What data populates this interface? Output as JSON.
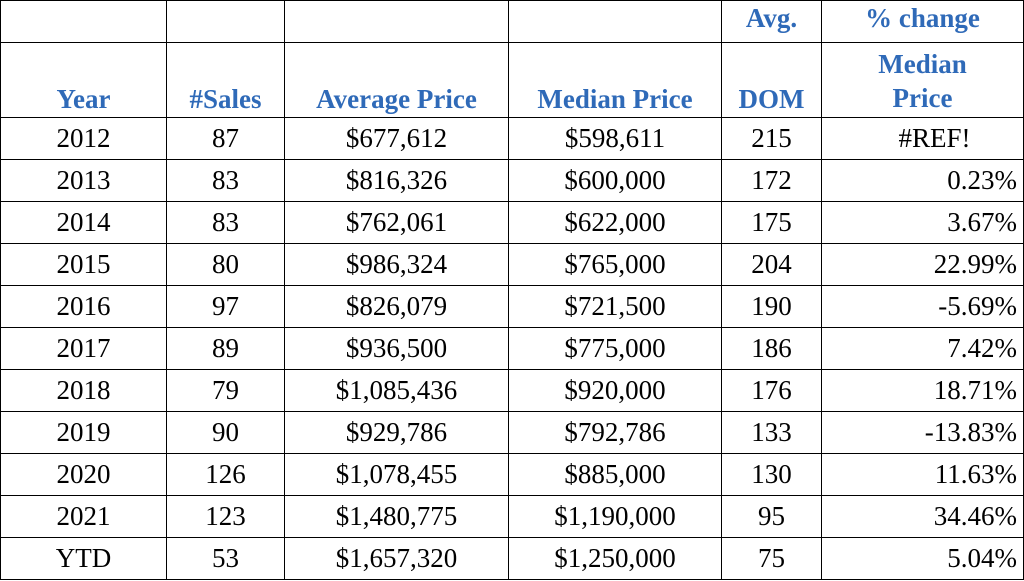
{
  "headers": {
    "year": "Year",
    "sales": "#Sales",
    "average_price": "Average Price",
    "median_price": "Median Price",
    "dom_top": "Avg.",
    "dom_bottom": "DOM",
    "pct_line1": "% change",
    "pct_line2": "Median",
    "pct_line3": "Price"
  },
  "colors": {
    "header_text": "#2f6ab8",
    "body_text": "#000000",
    "border": "#000000"
  },
  "rows": [
    {
      "year": "2012",
      "sales": "87",
      "avg": "$677,612",
      "median": "$598,611",
      "dom": "215",
      "pct": "#REF!"
    },
    {
      "year": "2013",
      "sales": "83",
      "avg": "$816,326",
      "median": "$600,000",
      "dom": "172",
      "pct": "0.23%"
    },
    {
      "year": "2014",
      "sales": "83",
      "avg": "$762,061",
      "median": "$622,000",
      "dom": "175",
      "pct": "3.67%"
    },
    {
      "year": "2015",
      "sales": "80",
      "avg": "$986,324",
      "median": "$765,000",
      "dom": "204",
      "pct": "22.99%"
    },
    {
      "year": "2016",
      "sales": "97",
      "avg": "$826,079",
      "median": "$721,500",
      "dom": "190",
      "pct": "-5.69%"
    },
    {
      "year": "2017",
      "sales": "89",
      "avg": "$936,500",
      "median": "$775,000",
      "dom": "186",
      "pct": "7.42%"
    },
    {
      "year": "2018",
      "sales": "79",
      "avg": "$1,085,436",
      "median": "$920,000",
      "dom": "176",
      "pct": "18.71%"
    },
    {
      "year": "2019",
      "sales": "90",
      "avg": "$929,786",
      "median": "$792,786",
      "dom": "133",
      "pct": "-13.83%"
    },
    {
      "year": "2020",
      "sales": "126",
      "avg": "$1,078,455",
      "median": "$885,000",
      "dom": "130",
      "pct": "11.63%"
    },
    {
      "year": "2021",
      "sales": "123",
      "avg": "$1,480,775",
      "median": "$1,190,000",
      "dom": "95",
      "pct": "34.46%"
    },
    {
      "year": "YTD",
      "sales": "53",
      "avg": "$1,657,320",
      "median": "$1,250,000",
      "dom": "75",
      "pct": "5.04%"
    }
  ]
}
